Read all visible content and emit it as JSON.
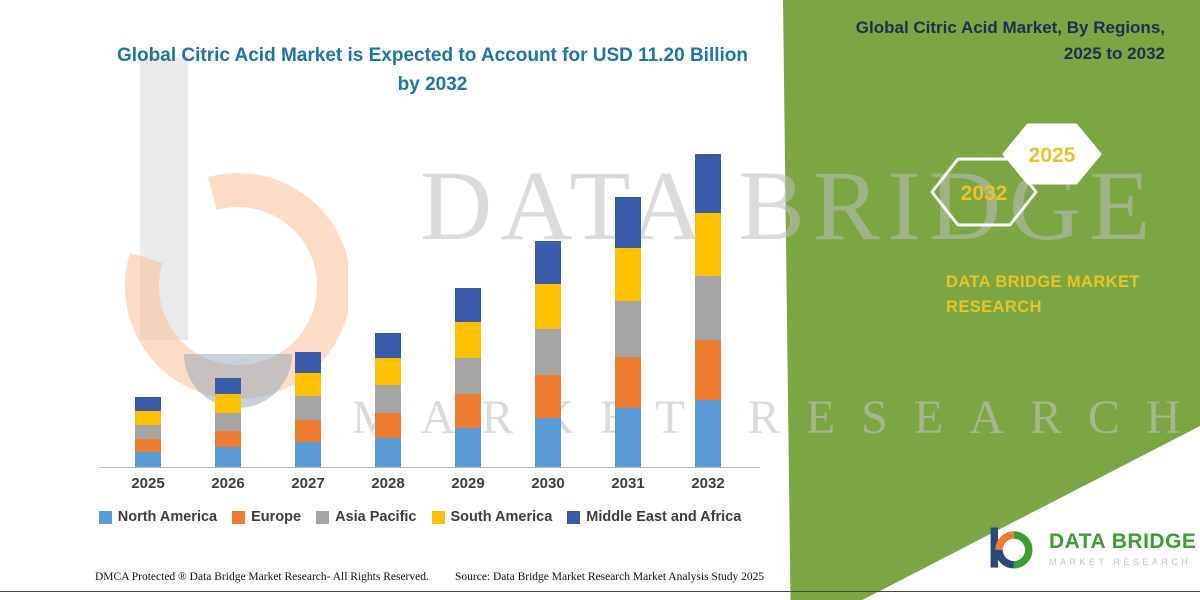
{
  "colors": {
    "panel_green": "#7CA643",
    "gold": "#E9C428",
    "title_blue": "#1C74A8",
    "side_title_navy": "#1C2E52",
    "logo_green": "#3E9C35",
    "text_dark": "#3D3D3D"
  },
  "header": {
    "title": "Global Citric Acid Market is Expected to Account for USD 11.20 Billion by 2032"
  },
  "side_panel": {
    "title_line1": "Global Citric Acid Market, By Regions,",
    "title_line2": "2025 to 2032",
    "hexagons": [
      {
        "label": "2032"
      },
      {
        "label": "2025"
      }
    ],
    "brand_line1": "DATA BRIDGE MARKET",
    "brand_line2": "RESEARCH"
  },
  "watermark": {
    "line1": "DATA BRIDGE",
    "line2": "MARKET RESEARCH"
  },
  "chart_data": {
    "type": "bar",
    "stacked": true,
    "title": "Global Citric Acid Market is Expected to Account for USD 11.20 Billion by 2032",
    "unit": "USD Billion",
    "xlabel": "",
    "ylabel": "",
    "grid": false,
    "legend_position": "bottom",
    "ylim": [
      0,
      12
    ],
    "categories": [
      "2025",
      "2026",
      "2027",
      "2028",
      "2029",
      "2030",
      "2031",
      "2032"
    ],
    "series": [
      {
        "name": "North America",
        "color": "#5B9BD5",
        "values": [
          0.55,
          0.7,
          0.9,
          1.05,
          1.4,
          1.75,
          2.1,
          2.4
        ]
      },
      {
        "name": "Europe",
        "color": "#ED7D31",
        "values": [
          0.45,
          0.6,
          0.8,
          0.9,
          1.2,
          1.55,
          1.85,
          2.15
        ]
      },
      {
        "name": "Asia Pacific",
        "color": "#A5A5A5",
        "values": [
          0.5,
          0.65,
          0.85,
          1.0,
          1.3,
          1.65,
          2.0,
          2.3
        ]
      },
      {
        "name": "South America",
        "color": "#FFC000",
        "values": [
          0.5,
          0.65,
          0.8,
          0.95,
          1.3,
          1.6,
          1.9,
          2.25
        ]
      },
      {
        "name": "Middle East and Africa",
        "color": "#3A5CA8",
        "values": [
          0.5,
          0.6,
          0.75,
          0.9,
          1.2,
          1.55,
          1.8,
          2.1
        ]
      }
    ],
    "totals": [
      2.5,
      3.2,
      4.1,
      4.8,
      6.4,
      8.1,
      9.65,
      11.2
    ]
  },
  "footer": {
    "dmca": "DMCA Protected ® Data Bridge Market Research-  All Rights Reserved.",
    "source": "Source: Data Bridge Market Research  Market Analysis Study 2025"
  },
  "logo": {
    "title": "DATA BRIDGE",
    "subtitle": "MARKET RESEARCH"
  }
}
